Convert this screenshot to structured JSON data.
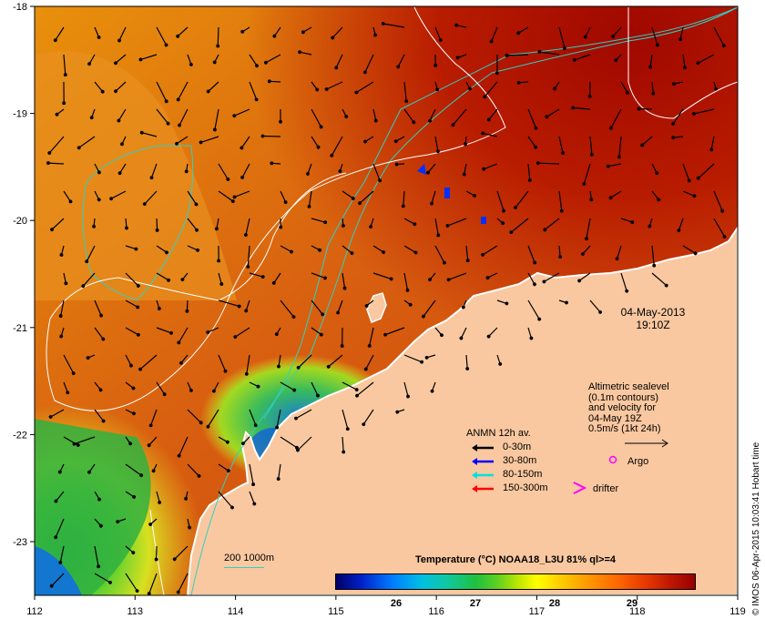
{
  "map": {
    "lon_ticks": [
      "112",
      "113",
      "114",
      "115",
      "116",
      "117",
      "118",
      "119"
    ],
    "lat_ticks": [
      "-18",
      "-19",
      "-20",
      "-21",
      "-22",
      "-23"
    ],
    "colors": {
      "land": "#f9c8a0",
      "contour_bathy": "#30d0c0",
      "contour_sealevel": "#ffffff",
      "ocean_warm": "#a81000",
      "ocean_mid": "#e07010",
      "ocean_cool": "#e8c020"
    }
  },
  "date_label": {
    "line1": "04-May-2013",
    "line2": "19:10Z"
  },
  "altimetry_legend": {
    "line1": "Altimetric sealevel",
    "line2": "(0.1m contours)",
    "line3": "and velocity for",
    "line4": "04-May 19Z",
    "line5": "0.5m/s (1kt 24h)"
  },
  "anmn_legend": {
    "title": "ANMN 12h av.",
    "rows": [
      {
        "label": "0-30m",
        "color": "#000000"
      },
      {
        "label": "30-80m",
        "color": "#0000ff"
      },
      {
        "label": "80-150m",
        "color": "#00e0e0"
      },
      {
        "label": "150-300m",
        "color": "#ff0000"
      }
    ]
  },
  "markers": {
    "argo_label": "Argo",
    "drifter_label": "drifter",
    "argo_color": "#ff00ff",
    "drifter_color": "#ff00ff"
  },
  "colorbar": {
    "title": "Temperature (°C) NOAA18_L3U 81% ql>=4",
    "ticks": [
      "26",
      "27",
      "28",
      "29"
    ]
  },
  "contour_legend": {
    "label": "200  1000m"
  },
  "credit": "© IMOS 06-Apr-2015 10:03:41 Hobart time"
}
